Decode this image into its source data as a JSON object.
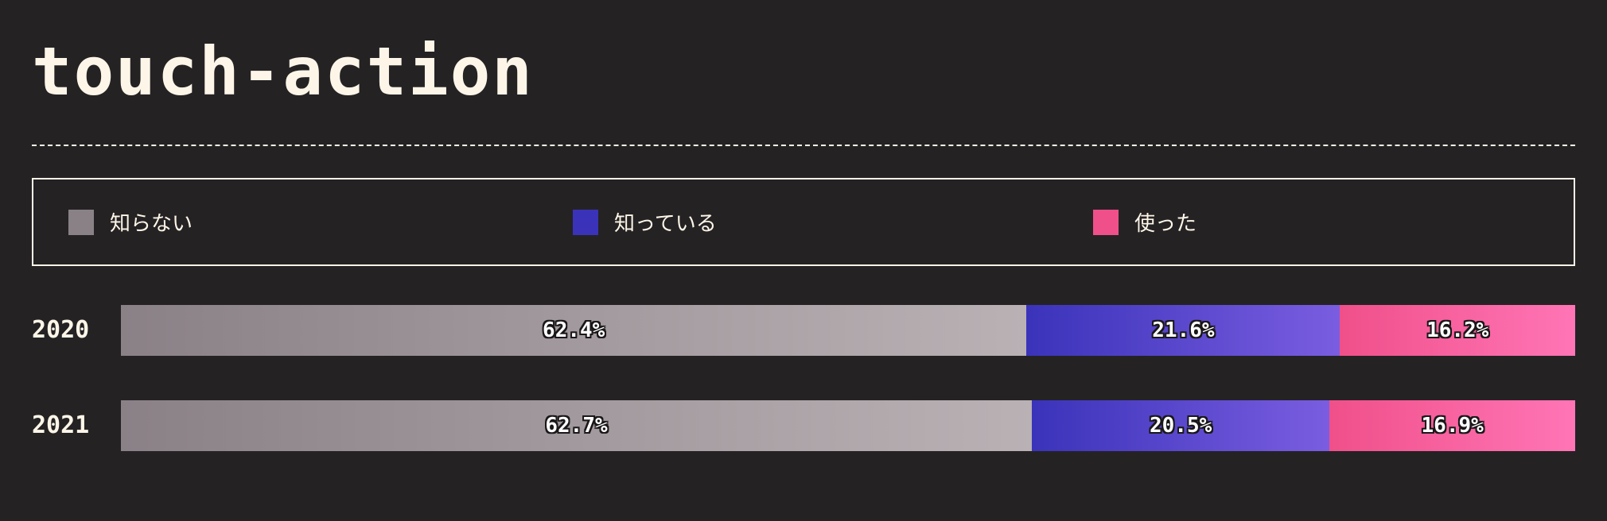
{
  "title": "touch-action",
  "chart_data": {
    "type": "bar",
    "orientation": "horizontal-stacked-100",
    "categories": [
      "2020",
      "2021"
    ],
    "series": [
      {
        "name": "知らない",
        "values": [
          62.4,
          62.7
        ],
        "color_start": "#8a8187",
        "color_end": "#b9b1b4"
      },
      {
        "name": "知っている",
        "values": [
          21.6,
          20.5
        ],
        "color_start": "#3a33ba",
        "color_end": "#7a5de0"
      },
      {
        "name": "使った",
        "values": [
          16.2,
          16.9
        ],
        "color_start": "#f0508a",
        "color_end": "#ff75b6"
      }
    ],
    "value_labels": [
      [
        "62.4%",
        "21.6%",
        "16.2%"
      ],
      [
        "62.7%",
        "20.5%",
        "16.9%"
      ]
    ],
    "legend_position": "top",
    "xlim": [
      0,
      100
    ]
  }
}
